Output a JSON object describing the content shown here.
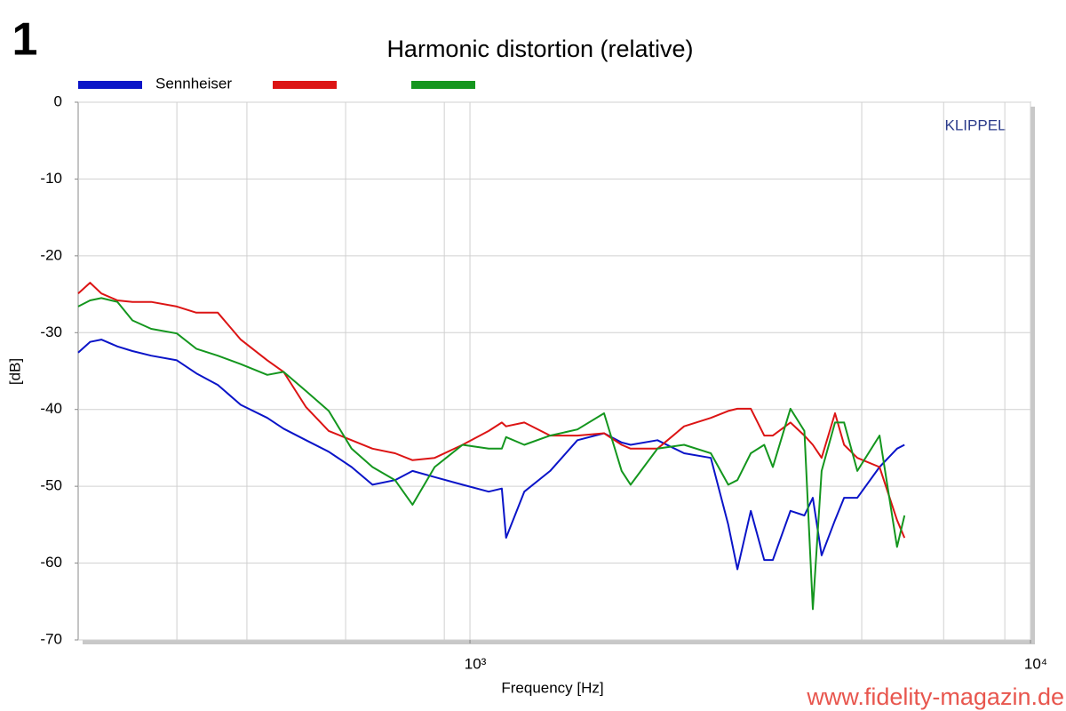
{
  "figure_number": "1",
  "watermark": "www.fidelity-magazin.de",
  "brand": "KLIPPEL",
  "chart_data": {
    "type": "line",
    "title": "Harmonic distortion (relative)",
    "x_label": "Frequency [Hz]",
    "y_label": "[dB]",
    "xscale": "log",
    "xlim": [
      200,
      10000
    ],
    "ylim": [
      -70,
      0
    ],
    "xticks": [
      {
        "value": 1000,
        "label": "10³"
      },
      {
        "value": 10000,
        "label": "10⁴"
      }
    ],
    "xgrid_minor": [
      300,
      400,
      600,
      900,
      5000,
      7000,
      9000
    ],
    "yticks": [
      0,
      -10,
      -20,
      -30,
      -40,
      -50,
      -60,
      -70
    ],
    "grid": true,
    "x": [
      200,
      210,
      220,
      235,
      250,
      270,
      300,
      325,
      355,
      390,
      435,
      465,
      510,
      560,
      615,
      670,
      735,
      790,
      865,
      970,
      1080,
      1140,
      1160,
      1250,
      1390,
      1555,
      1735,
      1865,
      1935,
      2160,
      2410,
      2690,
      2890,
      3000,
      3170,
      3350,
      3470,
      3730,
      3950,
      4090,
      4240,
      4480,
      4650,
      4910,
      5380,
      5780,
      5960
    ],
    "series": [
      {
        "name": "Sennheiser",
        "color": "#0a14c8",
        "values": [
          -32.6,
          -31.2,
          -30.9,
          -31.8,
          -32.4,
          -33.0,
          -33.6,
          -35.3,
          -36.8,
          -39.4,
          -41.1,
          -42.5,
          -44.0,
          -45.5,
          -47.5,
          -49.8,
          -49.2,
          -48.0,
          -48.8,
          -49.8,
          -50.7,
          -50.3,
          -56.7,
          -50.7,
          -48.0,
          -44.0,
          -43.1,
          -44.3,
          -44.6,
          -44.0,
          -45.7,
          -46.3,
          -55.0,
          -60.8,
          -53.2,
          -59.6,
          -59.6,
          -53.2,
          -53.8,
          -51.5,
          -59.0,
          -54.4,
          -51.5,
          -51.5,
          -47.5,
          -45.1,
          -44.6
        ]
      },
      {
        "color": "#dc1414",
        "values": [
          -24.9,
          -23.5,
          -24.9,
          -25.8,
          -26.0,
          -26.0,
          -26.6,
          -27.4,
          -27.4,
          -30.9,
          -33.6,
          -35.1,
          -39.7,
          -42.8,
          -44.0,
          -45.1,
          -45.7,
          -46.6,
          -46.3,
          -44.6,
          -42.8,
          -41.7,
          -42.2,
          -41.7,
          -43.4,
          -43.4,
          -43.1,
          -44.6,
          -45.1,
          -45.1,
          -42.2,
          -41.1,
          -40.2,
          -39.9,
          -39.9,
          -43.4,
          -43.4,
          -41.7,
          -43.4,
          -44.6,
          -46.3,
          -40.5,
          -44.6,
          -46.3,
          -47.5,
          -54.4,
          -56.7
        ]
      },
      {
        "color": "#14961e",
        "values": [
          -26.6,
          -25.8,
          -25.5,
          -26.0,
          -28.4,
          -29.5,
          -30.1,
          -32.1,
          -33.0,
          -34.1,
          -35.5,
          -35.1,
          -37.6,
          -40.2,
          -45.1,
          -47.5,
          -49.2,
          -52.4,
          -47.5,
          -44.6,
          -45.1,
          -45.1,
          -43.6,
          -44.6,
          -43.4,
          -42.6,
          -40.5,
          -48.0,
          -49.8,
          -45.1,
          -44.6,
          -45.7,
          -49.8,
          -49.2,
          -45.7,
          -44.6,
          -47.5,
          -39.9,
          -42.8,
          -66.0,
          -48.0,
          -41.7,
          -41.7,
          -48.0,
          -43.4,
          -57.9,
          -53.8
        ]
      }
    ]
  }
}
